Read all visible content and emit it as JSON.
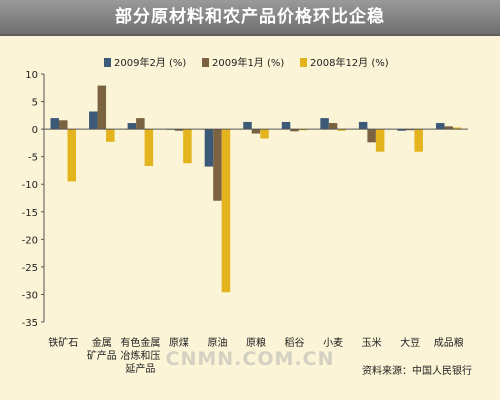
{
  "title": "部分原材料和农产品价格环比企稳",
  "source": "资料来源：中国人民银行",
  "watermark": "CNMN.COM.CN",
  "chart_data": {
    "type": "bar",
    "title": "部分原材料和农产品价格环比企稳",
    "xlabel": "",
    "ylabel": "",
    "ylim": [
      -35,
      10
    ],
    "yticks": [
      10,
      5,
      0,
      -5,
      -10,
      -15,
      -20,
      -25,
      -30,
      -35
    ],
    "grid": false,
    "legend_position": "top",
    "categories": [
      [
        "铁矿石"
      ],
      [
        "金属",
        "矿产品"
      ],
      [
        "有色金属",
        "冶炼和压",
        "延产品"
      ],
      [
        "原煤"
      ],
      [
        "原油"
      ],
      [
        "原粮"
      ],
      [
        "稻谷"
      ],
      [
        "小麦"
      ],
      [
        "玉米"
      ],
      [
        "大豆"
      ],
      [
        "成品粮"
      ]
    ],
    "series": [
      {
        "name": "2009年2月 (%)",
        "color": "#3c5a78",
        "values": [
          2.0,
          3.2,
          1.1,
          0.0,
          -6.8,
          1.3,
          1.3,
          2.0,
          1.3,
          -0.3,
          1.1
        ]
      },
      {
        "name": "2009年1月 (%)",
        "color": "#7b6241",
        "values": [
          1.6,
          7.9,
          2.0,
          -0.3,
          -13.0,
          -0.8,
          -0.4,
          1.1,
          -2.4,
          -0.2,
          0.5
        ]
      },
      {
        "name": "2008年12月 (%)",
        "color": "#e3b41e",
        "values": [
          -9.5,
          -2.3,
          -6.7,
          -6.2,
          -29.6,
          -1.7,
          -0.2,
          -0.3,
          -4.1,
          -4.1,
          0.3
        ]
      }
    ]
  }
}
